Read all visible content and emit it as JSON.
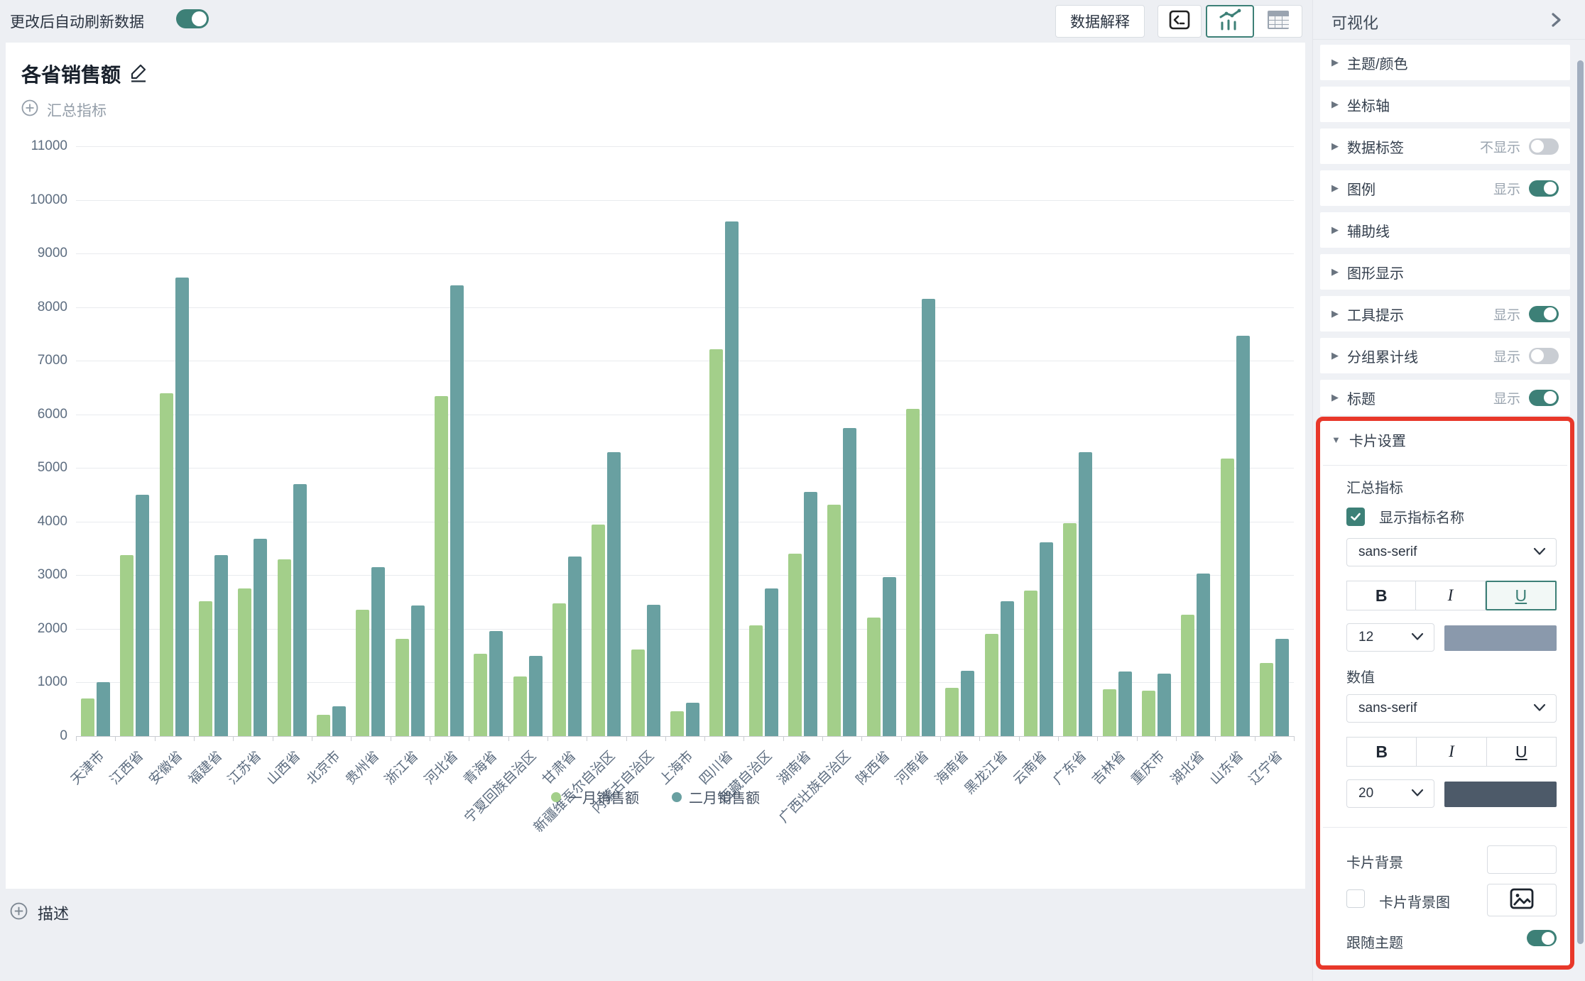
{
  "topbar": {
    "auto_refresh_label": "更改后自动刷新数据",
    "auto_refresh_on": true,
    "explain_button": "数据解释"
  },
  "card": {
    "title": "各省销售额",
    "summary_metric_label": "汇总指标",
    "description_label": "描述"
  },
  "chart_data": {
    "type": "bar",
    "title": "各省销售额",
    "categories": [
      "天津市",
      "江西省",
      "安徽省",
      "福建省",
      "江苏省",
      "山西省",
      "北京市",
      "贵州省",
      "浙江省",
      "河北省",
      "青海省",
      "宁夏回族自治区",
      "甘肃省",
      "新疆维吾尔自治区",
      "内蒙古自治区",
      "上海市",
      "四川省",
      "西藏自治区",
      "湖南省",
      "广西壮族自治区",
      "陕西省",
      "河南省",
      "海南省",
      "黑龙江省",
      "云南省",
      "广东省",
      "吉林省",
      "重庆市",
      "湖北省",
      "山东省",
      "辽宁省"
    ],
    "series": [
      {
        "name": "一月销售额",
        "color": "#a3cf8a",
        "values": [
          700,
          3370,
          6400,
          2520,
          2760,
          3300,
          400,
          2360,
          1810,
          6340,
          1540,
          1110,
          2480,
          3950,
          1610,
          460,
          7220,
          2060,
          3400,
          4310,
          2210,
          6100,
          900,
          1900,
          2720,
          3970,
          880,
          850,
          2270,
          5170,
          1360
        ]
      },
      {
        "name": "二月销售额",
        "color": "#69a0a1",
        "values": [
          1000,
          4500,
          8550,
          3370,
          3680,
          4700,
          550,
          3150,
          2440,
          8410,
          1955,
          1500,
          3350,
          5300,
          2450,
          620,
          9600,
          2750,
          4560,
          5750,
          2960,
          8150,
          1220,
          2520,
          3620,
          5300,
          1200,
          1160,
          3030,
          7470,
          1810
        ]
      }
    ],
    "xlabel": "",
    "ylabel": "",
    "ylim": [
      0,
      11000
    ],
    "ytick_step": 1000,
    "grid": true,
    "legend_position": "bottom"
  },
  "sidebar": {
    "title": "可视化",
    "sections": [
      {
        "label": "主题/颜色"
      },
      {
        "label": "坐标轴"
      },
      {
        "label": "数据标签",
        "status": "不显示",
        "toggle": false
      },
      {
        "label": "图例",
        "status": "显示",
        "toggle": true
      },
      {
        "label": "辅助线"
      },
      {
        "label": "图形显示"
      },
      {
        "label": "工具提示",
        "status": "显示",
        "toggle": true
      },
      {
        "label": "分组累计线",
        "status": "显示",
        "toggle": false
      },
      {
        "label": "标题",
        "status": "显示",
        "toggle": true
      }
    ],
    "card_settings": {
      "label": "卡片设置",
      "summary_group_label": "汇总指标",
      "show_metric_name_label": "显示指标名称",
      "show_metric_name_checked": true,
      "style_buttons": [
        "B",
        "I",
        "U"
      ],
      "summary_font": "sans-serif",
      "summary_size": "12",
      "summary_color": "#8a99ac",
      "summary_active_style": "U",
      "value_group_label": "数值",
      "value_font": "sans-serif",
      "value_size": "20",
      "value_color": "#4d5a69",
      "card_bg_label": "卡片背景",
      "card_bg_color": "#ffffff",
      "card_bg_image_label": "卡片背景图",
      "card_bg_image_checked": false,
      "follow_theme_label": "跟随主题",
      "follow_theme_on": true
    },
    "annotation_color": "#e8382a"
  },
  "colors": {
    "accent_teal": "#3d8077",
    "bar_green": "#a3cf8a",
    "bar_teal": "#69a0a1",
    "annotation_red": "#e8382a",
    "page_bg": "#edeff3"
  }
}
